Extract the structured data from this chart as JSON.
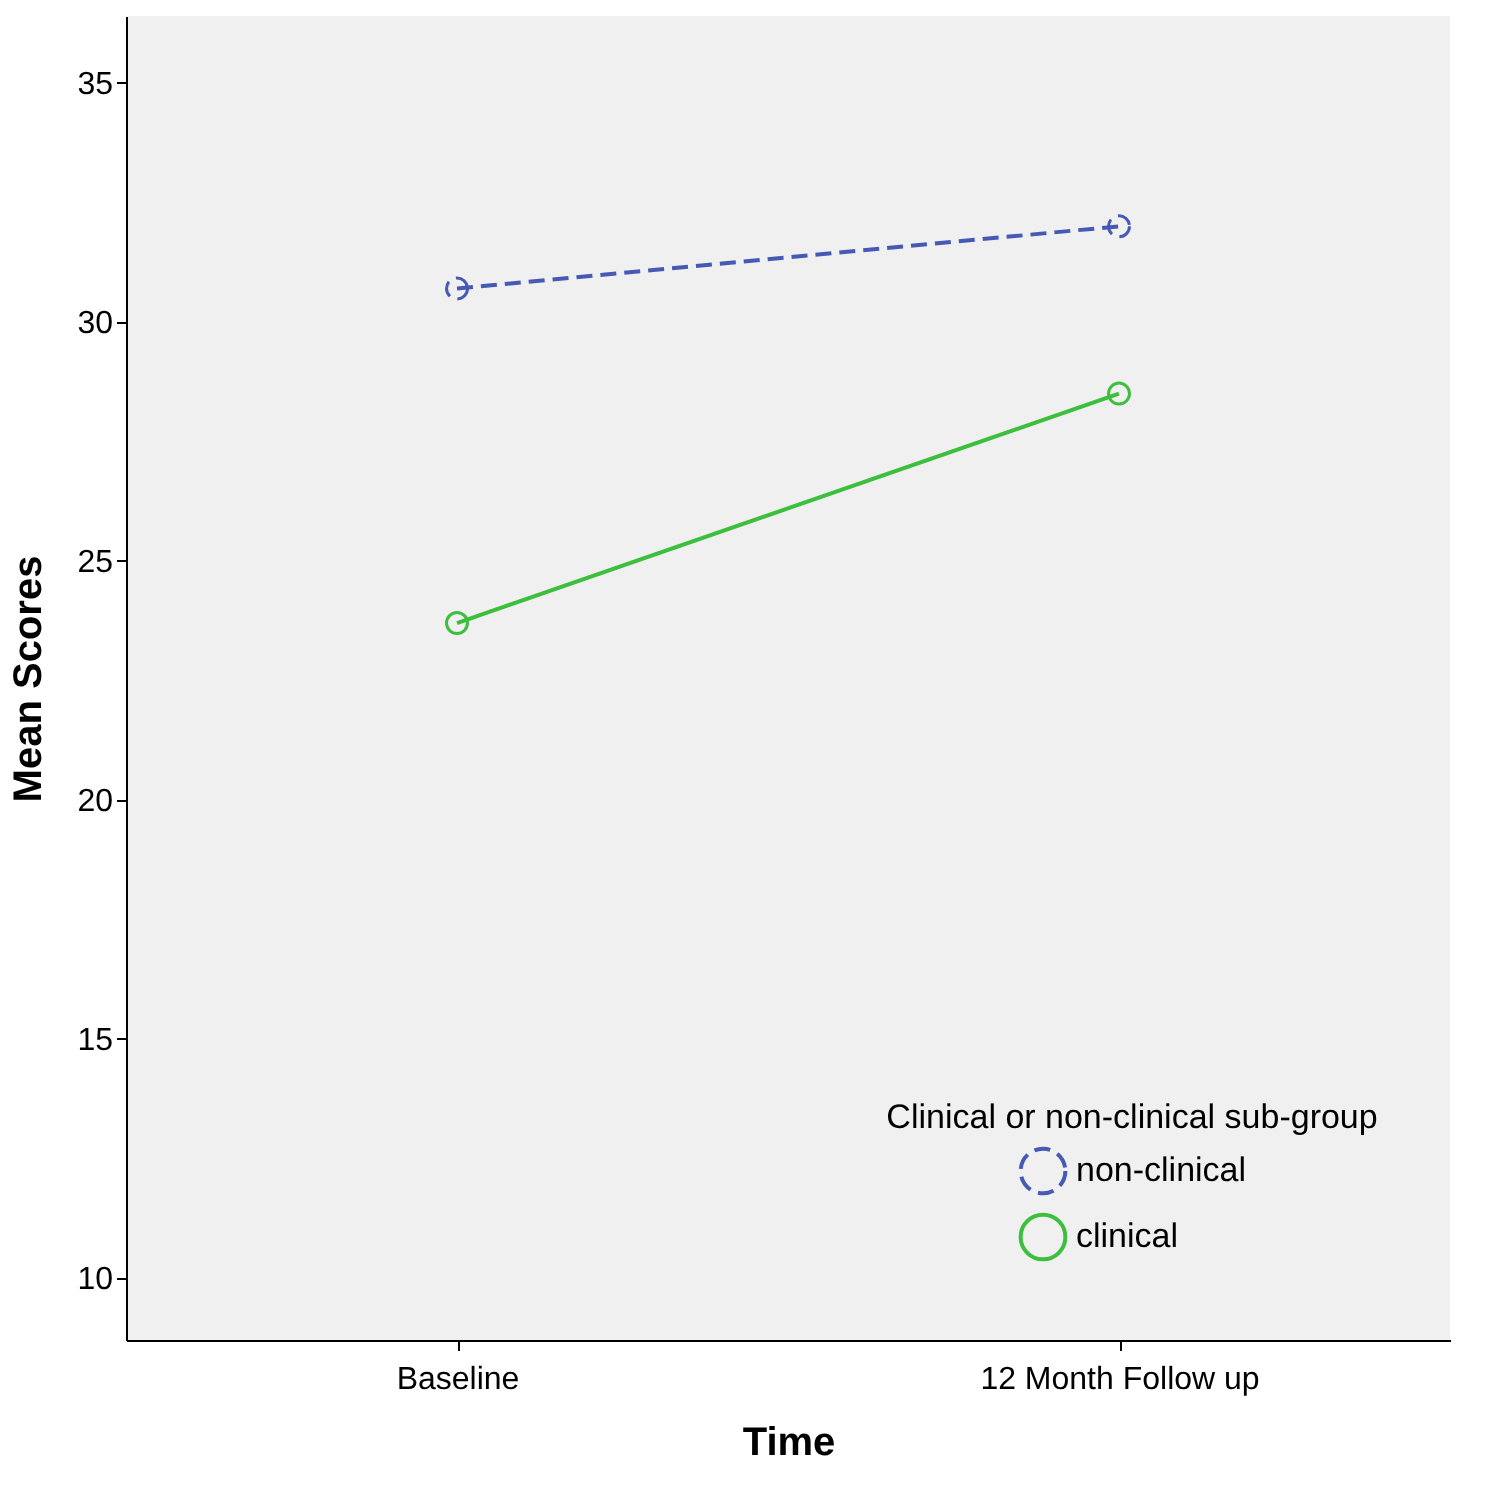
{
  "chart_data": {
    "type": "line",
    "xlabel": "Time",
    "ylabel": "Mean Scores",
    "legend_title": "Clinical or non-clinical sub-group",
    "categories": [
      "Baseline",
      "12 Month Follow up"
    ],
    "series": [
      {
        "name": "non-clinical",
        "color": "#4559b5",
        "values": [
          30.7,
          32.0
        ],
        "line_style": "dashed"
      },
      {
        "name": "clinical",
        "color": "#3cbf3c",
        "values": [
          23.7,
          28.5
        ],
        "line_style": "solid"
      }
    ],
    "ylim": [
      8.7,
      36.4
    ],
    "yticks": [
      10,
      15,
      20,
      25,
      30,
      35
    ],
    "grid": false,
    "legend": "bottom right",
    "marker": "circle"
  }
}
